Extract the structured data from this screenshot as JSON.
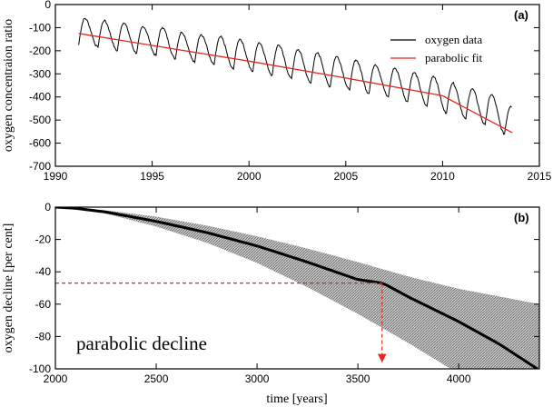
{
  "chart_data": [
    {
      "panel": "(a)",
      "type": "line",
      "xlabel": "",
      "ylabel": "oxygen concentraion ratio",
      "xlim": [
        1990,
        2015
      ],
      "ylim": [
        -700,
        0
      ],
      "xticks": [
        1990,
        1995,
        2000,
        2005,
        2010,
        2015
      ],
      "yticks": [
        0,
        -100,
        -200,
        -300,
        -400,
        -500,
        -600,
        -700
      ],
      "legend": {
        "position": "top-right",
        "entries": [
          "oxygen data",
          "parabolic fit"
        ]
      },
      "series": [
        {
          "name": "oxygen data",
          "color": "#000000",
          "model": "seasonal oscillation around trend",
          "x_range": [
            1991.2,
            2013.6
          ],
          "seasonal_amplitude": 55,
          "peak_values": [
            -60,
            -70,
            -80,
            -95,
            -100,
            -120,
            -130,
            -140,
            -150,
            -165,
            -175,
            -195,
            -210,
            -225,
            -240,
            -260,
            -275,
            -295,
            -310,
            -340,
            -365,
            -390,
            -440
          ],
          "trough_values": [
            -175,
            -185,
            -200,
            -210,
            -220,
            -235,
            -250,
            -260,
            -280,
            -290,
            -305,
            -320,
            -340,
            -355,
            -370,
            -385,
            -400,
            -420,
            -440,
            -470,
            -495,
            -520,
            -560,
            -590
          ]
        },
        {
          "name": "parabolic fit",
          "color": "#e8271c",
          "x": [
            1991.2,
            1995,
            2000,
            2005,
            2010,
            2013.6
          ],
          "y": [
            -125,
            -177,
            -245,
            -318,
            -395,
            -555
          ]
        }
      ]
    },
    {
      "panel": "(b)",
      "type": "area",
      "xlabel": "time [years]",
      "ylabel": "oxygen decline [per cent]",
      "xlim": [
        2000,
        4400
      ],
      "ylim": [
        -100,
        0
      ],
      "xticks": [
        2000,
        2500,
        3000,
        3500,
        4000
      ],
      "yticks": [
        0,
        -20,
        -40,
        -60,
        -80,
        -100
      ],
      "series": [
        {
          "name": "central projection",
          "color": "#000000",
          "x": [
            2000,
            2100,
            2250,
            2500,
            2750,
            3000,
            3250,
            3500,
            3625,
            3750,
            4000,
            4200,
            4390
          ],
          "y": [
            0,
            -0.7,
            -3,
            -8.8,
            -15.7,
            -24,
            -34,
            -44.8,
            -47,
            -55.5,
            -70.8,
            -84.6,
            -100
          ]
        },
        {
          "name": "uncertainty band upper",
          "color": "#888888",
          "x": [
            2000,
            2250,
            2500,
            2750,
            3000,
            3250,
            3500,
            3750,
            4000,
            4200,
            4400
          ],
          "y": [
            0,
            -2,
            -5.9,
            -11.4,
            -18,
            -25.6,
            -34,
            -42.9,
            -50.5,
            -55.2,
            -60
          ]
        },
        {
          "name": "uncertainty band lower",
          "color": "#888888",
          "x": [
            2000,
            2250,
            2500,
            2750,
            3000,
            3250,
            3500,
            3750,
            3960
          ],
          "y": [
            0,
            -4,
            -12,
            -22,
            -34.5,
            -49.5,
            -66,
            -84,
            -100
          ]
        }
      ],
      "reference": {
        "x": 3620,
        "y": -47,
        "color": "#e8271c",
        "style": "dashed with arrow to x-axis"
      },
      "annotation": "parabolic decline"
    }
  ]
}
